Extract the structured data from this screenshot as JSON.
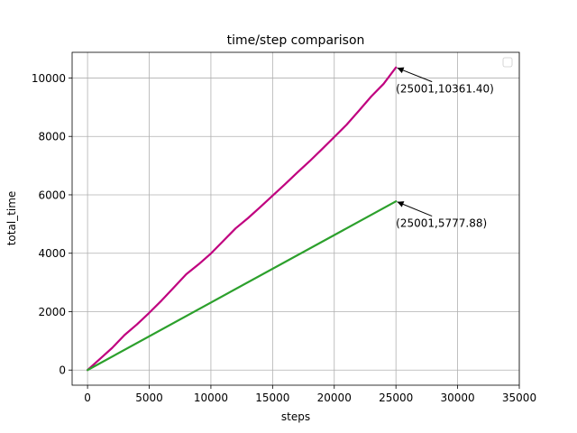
{
  "chart_data": {
    "type": "line",
    "title": "time/step comparison",
    "xlabel": "steps",
    "ylabel": "total_time",
    "xlim": [
      -1250,
      35000
    ],
    "ylim": [
      -518,
      10879
    ],
    "xticks": [
      0,
      5000,
      10000,
      15000,
      20000,
      25000,
      30000,
      35000
    ],
    "xtick_labels": [
      "0",
      "5000",
      "10000",
      "15000",
      "20000",
      "25000",
      "30000",
      "35000"
    ],
    "yticks": [
      0,
      2000,
      4000,
      6000,
      8000,
      10000
    ],
    "ytick_labels": [
      "0",
      "2000",
      "4000",
      "6000",
      "8000",
      "10000"
    ],
    "grid": true,
    "legend": {
      "location": "top-right",
      "entries": []
    },
    "series": [
      {
        "color": "#c0007f",
        "x": [
          0,
          1000,
          2000,
          3000,
          4000,
          5000,
          6000,
          7000,
          8000,
          9000,
          10000,
          11000,
          12000,
          13000,
          14000,
          15000,
          16000,
          17000,
          18000,
          19000,
          20000,
          21000,
          22000,
          23000,
          24000,
          25001
        ],
        "y": [
          0,
          380,
          760,
          1200,
          1560,
          1960,
          2380,
          2830,
          3280,
          3620,
          3990,
          4420,
          4850,
          5200,
          5580,
          5970,
          6360,
          6760,
          7150,
          7560,
          7980,
          8400,
          8880,
          9370,
          9800,
          10361.4
        ]
      },
      {
        "color": "#2ca02c",
        "x": [
          0,
          25001
        ],
        "y": [
          0,
          5777.88
        ]
      }
    ],
    "annotations": [
      {
        "text": "(25001,10361.40)",
        "x": 25001,
        "y": 10361.4,
        "text_x": 25001,
        "text_y": 9500
      },
      {
        "text": "(25001,5777.88)",
        "x": 25001,
        "y": 5777.88,
        "text_x": 25001,
        "text_y": 4900
      }
    ]
  }
}
